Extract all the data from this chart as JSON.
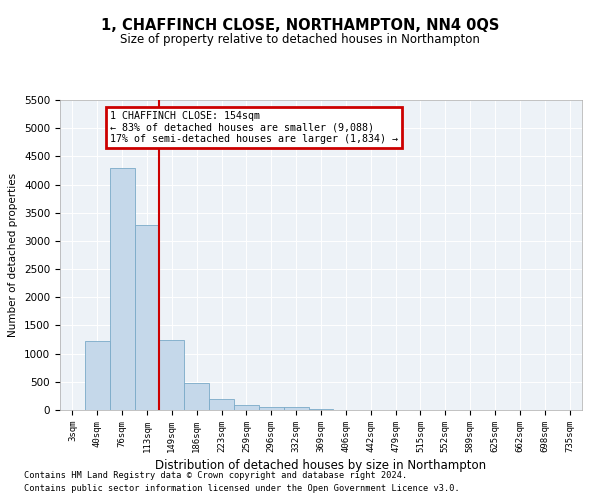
{
  "title": "1, CHAFFINCH CLOSE, NORTHAMPTON, NN4 0QS",
  "subtitle": "Size of property relative to detached houses in Northampton",
  "xlabel": "Distribution of detached houses by size in Northampton",
  "ylabel": "Number of detached properties",
  "footnote1": "Contains HM Land Registry data © Crown copyright and database right 2024.",
  "footnote2": "Contains public sector information licensed under the Open Government Licence v3.0.",
  "categories": [
    "3sqm",
    "40sqm",
    "76sqm",
    "113sqm",
    "149sqm",
    "186sqm",
    "223sqm",
    "259sqm",
    "296sqm",
    "332sqm",
    "369sqm",
    "406sqm",
    "442sqm",
    "479sqm",
    "515sqm",
    "552sqm",
    "589sqm",
    "625sqm",
    "662sqm",
    "698sqm",
    "735sqm"
  ],
  "values": [
    0,
    1230,
    4300,
    3280,
    1250,
    480,
    195,
    80,
    55,
    50,
    10,
    5,
    0,
    0,
    0,
    0,
    0,
    0,
    0,
    0,
    0
  ],
  "bar_color": "#c5d8ea",
  "bar_edge_color": "#7aaac8",
  "red_line_x": 3.5,
  "ylim": [
    0,
    5500
  ],
  "yticks": [
    0,
    500,
    1000,
    1500,
    2000,
    2500,
    3000,
    3500,
    4000,
    4500,
    5000,
    5500
  ],
  "annotation_text": "1 CHAFFINCH CLOSE: 154sqm\n← 83% of detached houses are smaller (9,088)\n17% of semi-detached houses are larger (1,834) →",
  "annotation_box_color": "#cc0000",
  "background_color": "#edf2f7"
}
